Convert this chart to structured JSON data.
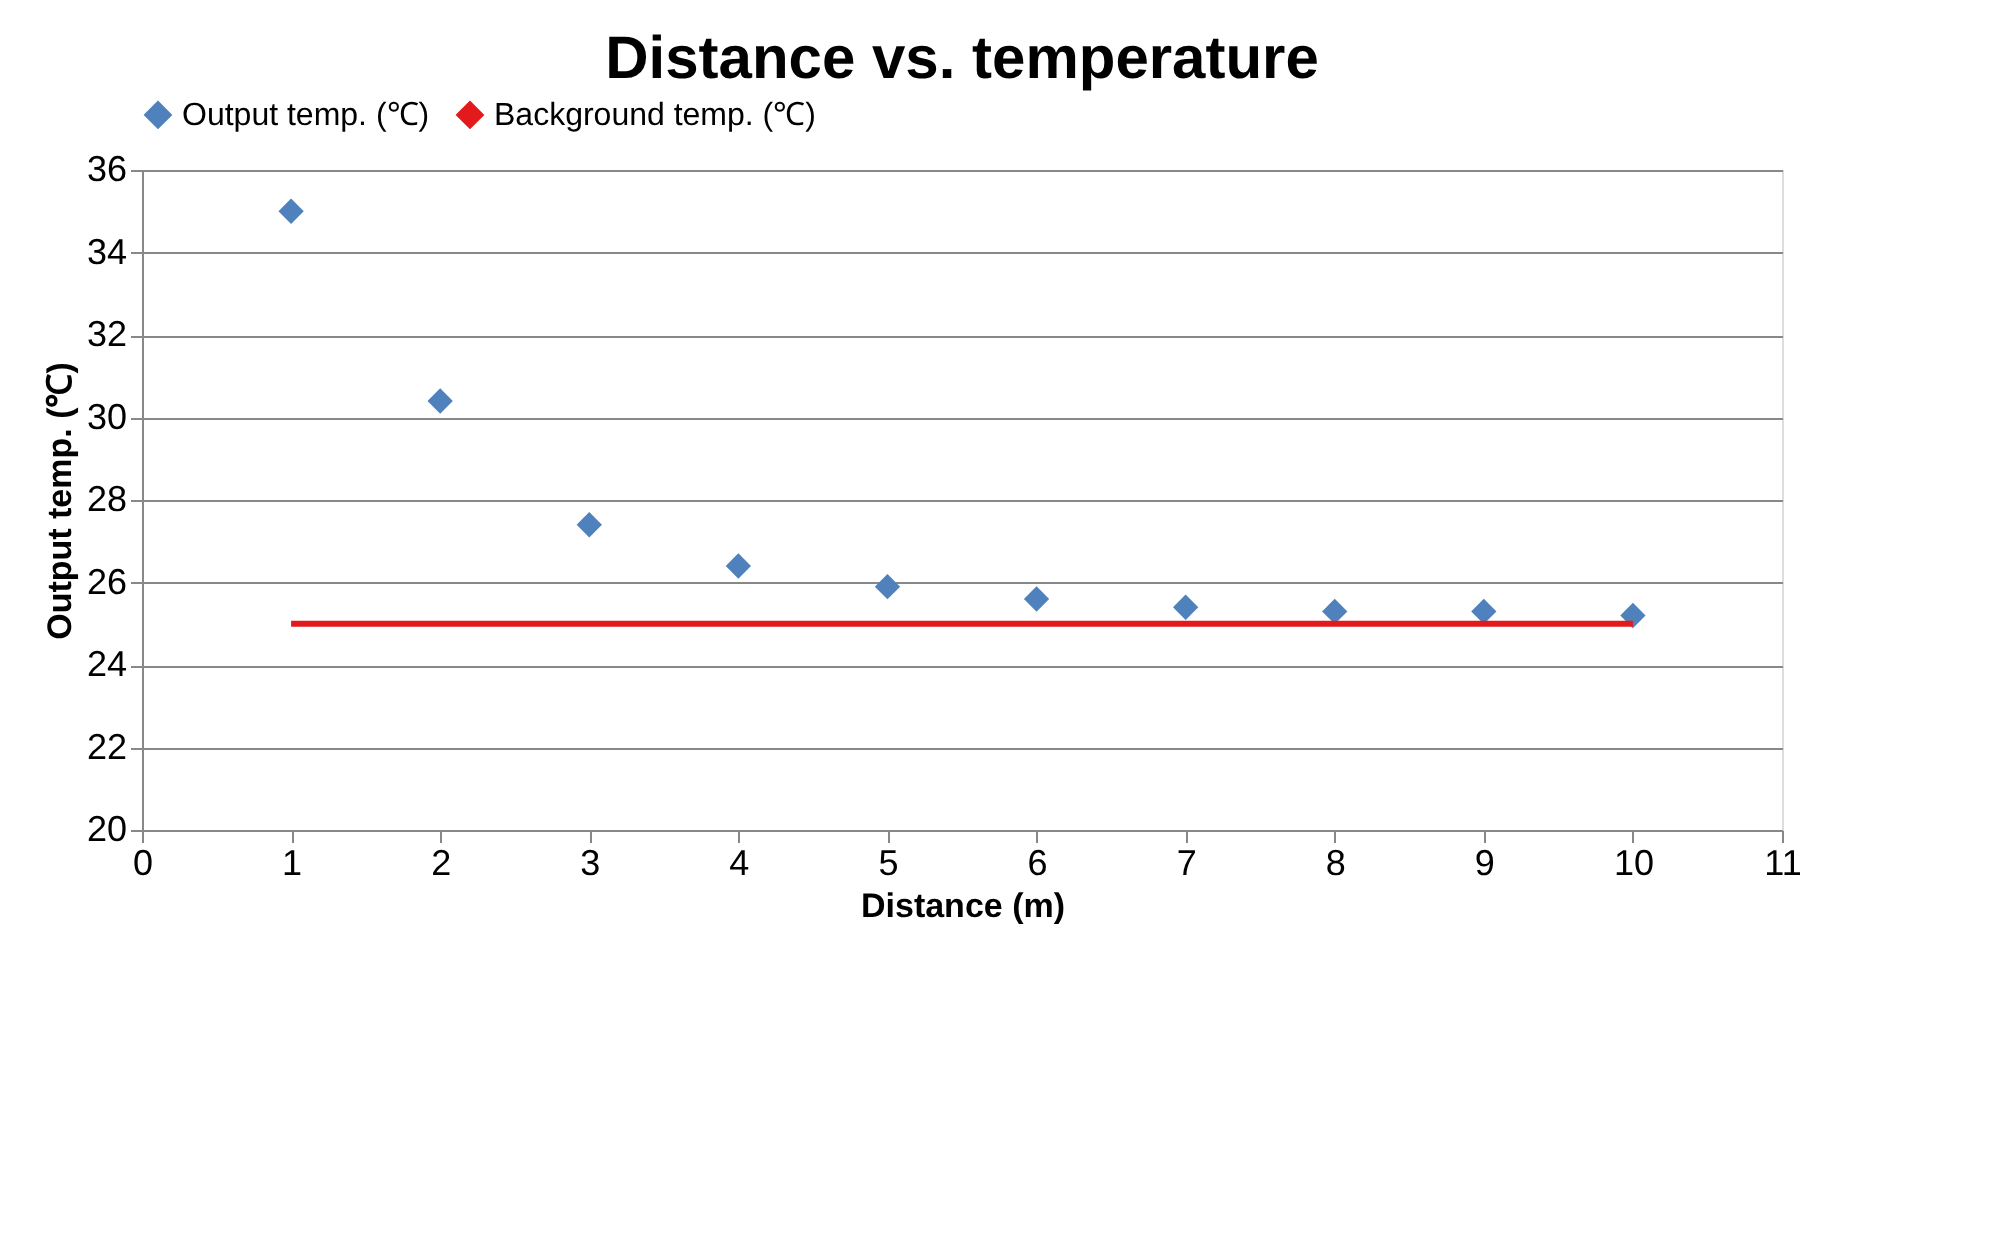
{
  "chart_data": {
    "type": "scatter",
    "title": "Distance vs. temperature",
    "xlabel": "Distance (m)",
    "ylabel": "Output temp. (℃)",
    "x": [
      1,
      2,
      3,
      4,
      5,
      6,
      7,
      8,
      9,
      10
    ],
    "series": [
      {
        "name": "Output temp. (℃)",
        "color": "#4f81bd",
        "marker": "diamond",
        "values": [
          35.0,
          30.4,
          27.4,
          26.4,
          25.9,
          25.6,
          25.4,
          25.3,
          25.3,
          25.2
        ]
      },
      {
        "name": "Background temp. (℃)",
        "color": "#e31a1c",
        "type": "line",
        "x": [
          1,
          10
        ],
        "values": [
          25,
          25
        ],
        "line_style": "solid"
      }
    ],
    "xlim": [
      0,
      11
    ],
    "xticks": [
      0,
      1,
      2,
      3,
      4,
      5,
      6,
      7,
      8,
      9,
      10,
      11
    ],
    "ylim": [
      20,
      36
    ],
    "yticks": [
      20,
      22,
      24,
      26,
      28,
      30,
      32,
      34,
      36
    ],
    "grid": "y",
    "legend": "top"
  }
}
